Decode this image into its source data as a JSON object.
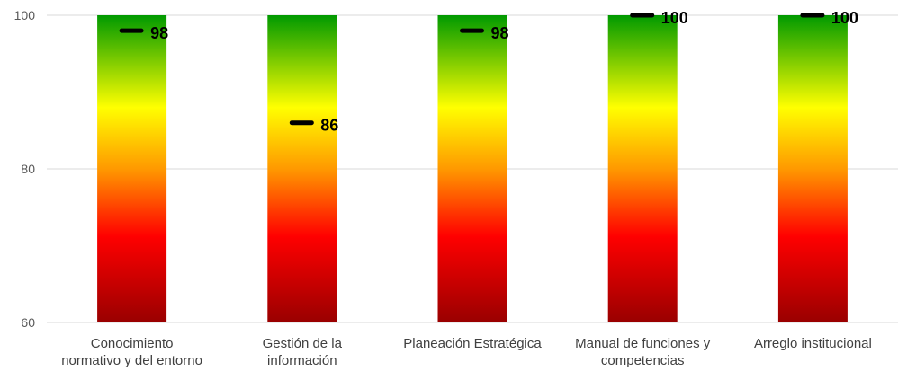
{
  "chart_data": {
    "type": "bar",
    "categories": [
      [
        "Conocimiento",
        "normativo y del entorno"
      ],
      [
        "Gestión de la",
        "información"
      ],
      [
        "Planeación Estratégica"
      ],
      [
        "Manual de funciones y",
        "competencias"
      ],
      [
        "Arreglo institucional"
      ]
    ],
    "values": [
      98,
      86,
      98,
      100,
      100
    ],
    "ylim": [
      60,
      100
    ],
    "y_ticks": [
      60,
      80,
      100
    ],
    "grid": true,
    "bar_gradient": [
      "#009900",
      "#ffff00",
      "#ff9900",
      "#ff0000",
      "#990000"
    ],
    "marker_color": "#000000",
    "title": "",
    "xlabel": "",
    "ylabel": ""
  }
}
